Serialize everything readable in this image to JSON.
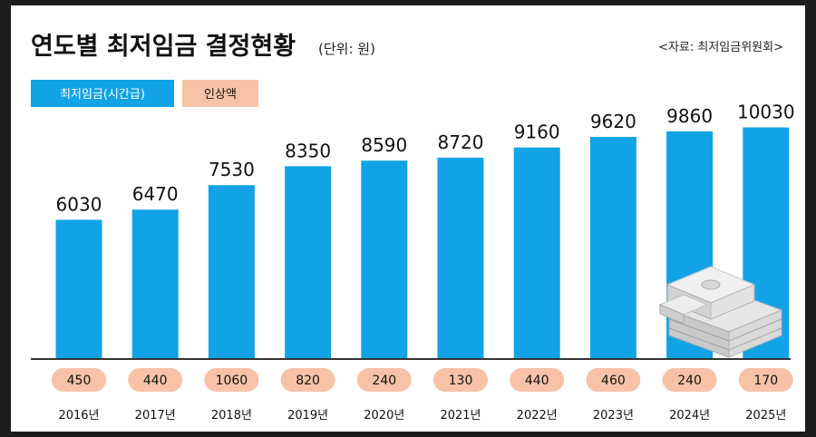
{
  "header": {
    "title": "연도별 최저임금 결정현황",
    "unit": "(단위: 원)",
    "source": "<자료: 최저임금위원회>"
  },
  "legend": {
    "wage_label": "최저임금(시간급)",
    "increase_label": "인상액"
  },
  "colors": {
    "bar": "#12a3e6",
    "legend_wage": "#12a3e6",
    "pill": "#f7c2a6",
    "baseline": "#333333"
  },
  "decor_icon": "money-stack-icon",
  "chart_data": {
    "type": "bar",
    "title": "연도별 최저임금 결정현황",
    "unit": "원",
    "categories": [
      "2016년",
      "2017년",
      "2018년",
      "2019년",
      "2020년",
      "2021년",
      "2022년",
      "2023년",
      "2024년",
      "2025년"
    ],
    "series": [
      {
        "name": "최저임금(시간급)",
        "values": [
          6030,
          6470,
          7530,
          8350,
          8590,
          8720,
          9160,
          9620,
          9860,
          10030
        ]
      },
      {
        "name": "인상액",
        "values": [
          450,
          440,
          1060,
          820,
          240,
          130,
          440,
          460,
          240,
          170
        ]
      }
    ],
    "ylim": [
      0,
      10600
    ]
  }
}
